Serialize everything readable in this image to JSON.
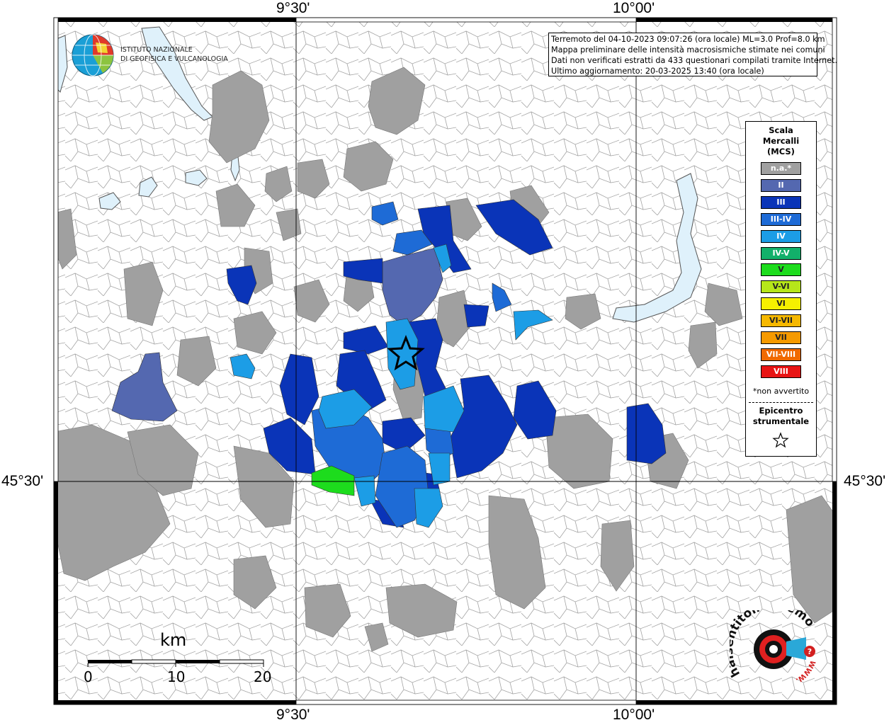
{
  "coordinates": {
    "top_left": "9°30'",
    "top_right": "10°00'",
    "bottom_left": "9°30'",
    "bottom_right": "10°00'",
    "left_lat": "45°30'",
    "right_lat": "45°30'"
  },
  "logo": {
    "line1": "ISTITUTO NAZIONALE",
    "line2": "DI GEOFISICA E VULCANOLOGIA"
  },
  "header": {
    "line1": "Terremoto del 04-10-2023 09:07:26 (ora locale) ML=3.0 Prof=8.0 km",
    "line2": "Mappa preliminare delle intensità macrosismiche stimate nei comuni",
    "line3": "Dati non verificati estratti da 433 questionari compilati tramite Internet.",
    "line4": "Ultimo aggiornamento: 20-03-2025 13:40 (ora locale)"
  },
  "legend": {
    "title1": "Scala",
    "title2": "Mercalli",
    "title3": "(MCS)",
    "items": [
      {
        "label": "n.a.*",
        "color": "#a0a0a0"
      },
      {
        "label": "II",
        "color": "#5468b0"
      },
      {
        "label": "III",
        "color": "#0a34b8"
      },
      {
        "label": "III-IV",
        "color": "#1e6bd6"
      },
      {
        "label": "IV",
        "color": "#1c9de6"
      },
      {
        "label": "IV-V",
        "color": "#12b06a"
      },
      {
        "label": "V",
        "color": "#1ddc1d"
      },
      {
        "label": "V-VI",
        "color": "#b6e61a"
      },
      {
        "label": "VI",
        "color": "#f6f000"
      },
      {
        "label": "VI-VII",
        "color": "#f6b800"
      },
      {
        "label": "VII",
        "color": "#f69a00"
      },
      {
        "label": "VII-VIII",
        "color": "#f06a00"
      },
      {
        "label": "VIII",
        "color": "#e81414"
      }
    ],
    "note": "*non avvertito",
    "epicentre1": "Epicentro",
    "epicentre2": "strumentale"
  },
  "scalebar": {
    "unit": "km",
    "ticks": [
      "0",
      "10",
      "20"
    ]
  },
  "watermark": {
    "text": "haisentitoilterremoto.it",
    "url": "WWW.",
    "question": "?"
  }
}
